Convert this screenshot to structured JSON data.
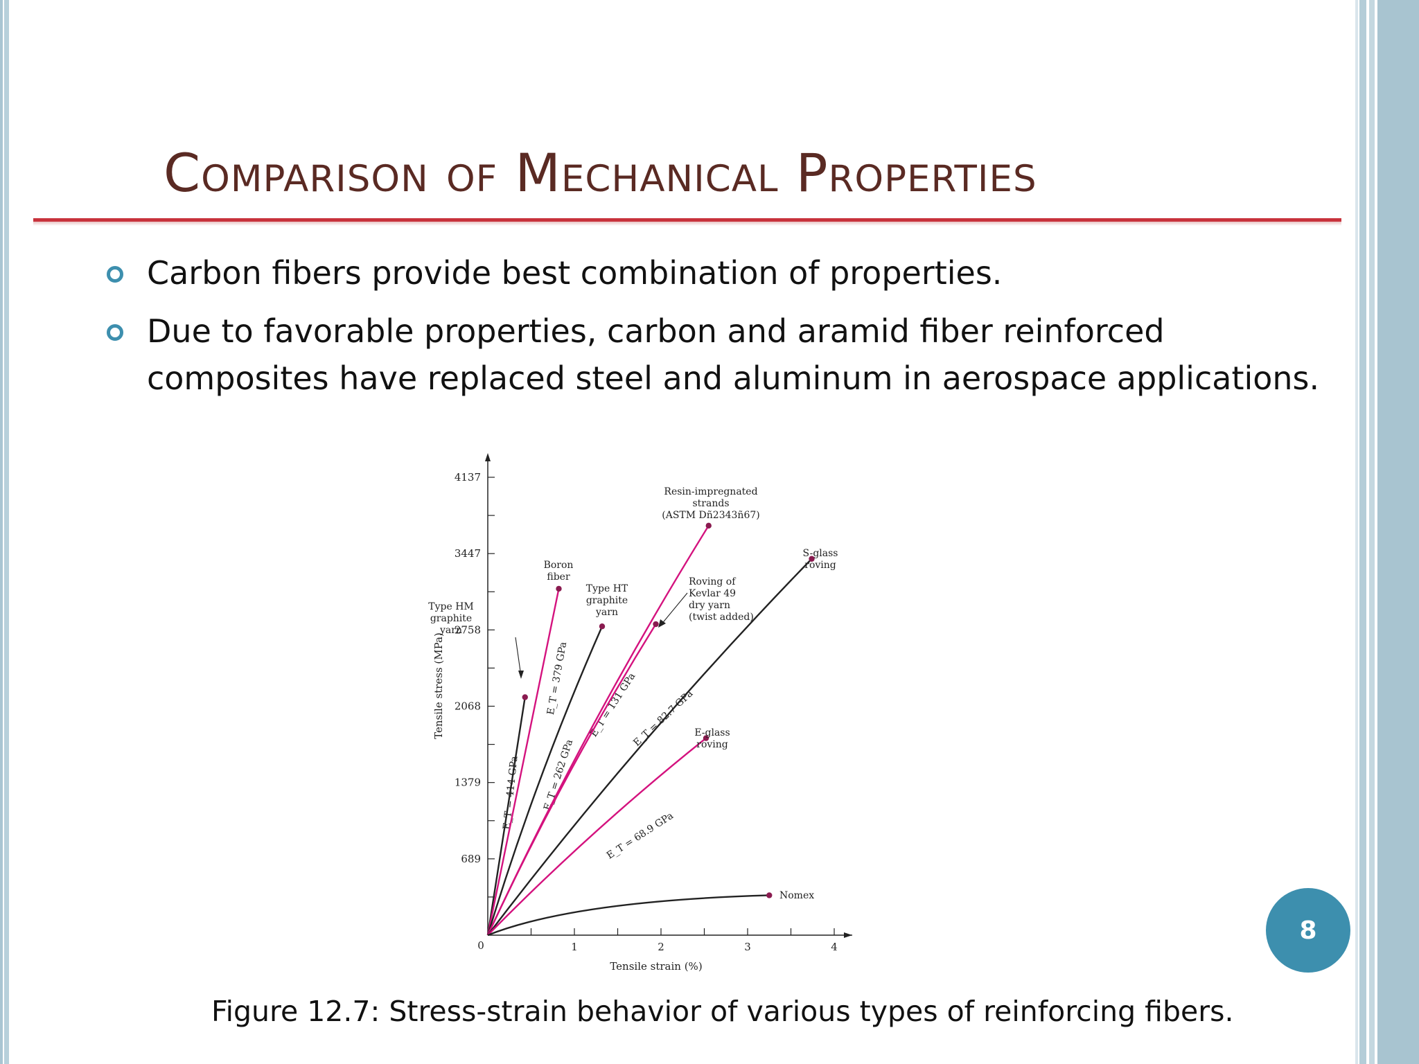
{
  "slide": {
    "title": "Comparison of Mechanical Properties",
    "bullets": [
      "Carbon fibers provide best combination of properties.",
      "Due to favorable properties, carbon and aramid fiber reinforced composites have replaced steel and aluminum in aerospace applications."
    ],
    "figure_caption": "Figure 12.7: Stress-strain behavior of various types of reinforcing fibers.",
    "page_number": "8",
    "colors": {
      "title": "#5a2a23",
      "rule": "#c8323c",
      "accent": "#3d8fae"
    }
  },
  "chart_data": {
    "type": "line",
    "xlabel": "Tensile strain (%)",
    "ylabel": "Tensile stress (MPa)",
    "xlim": [
      0,
      4.3
    ],
    "ylim": [
      0,
      4400
    ],
    "xticks": [
      "0",
      "1",
      "2",
      "3",
      "4"
    ],
    "yticks": [
      "689",
      "1379",
      "2068",
      "2758",
      "3447",
      "4137"
    ],
    "series": [
      {
        "name": "Type HM graphite yarn",
        "label": "Type HM\ngraphite\nyarn",
        "color": "#222222",
        "end": [
          0.43,
          2150
        ],
        "slope_label": "E_T = 414 GPa"
      },
      {
        "name": "Boron fiber",
        "label": "Boron\nfiber",
        "color": "#d4127e",
        "end": [
          0.82,
          3130
        ],
        "slope_label": "E_T = 379 GPa"
      },
      {
        "name": "Type HT graphite yarn",
        "label": "Type HT\ngraphite\nyarn",
        "color": "#222222",
        "end": [
          1.32,
          2790
        ],
        "slope_label": "E_T = 262 GPa"
      },
      {
        "name": "Resin-impregnated strands",
        "label": "Resin-impregnated\nstrands\n(ASTM Dñ2343ñ67)",
        "color": "#d4127e",
        "end": [
          2.55,
          3700
        ],
        "slope_label": "E_T = 131 GPa"
      },
      {
        "name": "Roving of Kevlar 49 dry yarn (twist added)",
        "label": "Roving of\nKevlar 49\ndry yarn\n(twist added)",
        "color": "#d4127e",
        "end": [
          1.94,
          2810
        ],
        "slope_label": ""
      },
      {
        "name": "S-glass roving",
        "label": "S-glass\nroving",
        "color": "#222222",
        "end": [
          3.74,
          3400
        ],
        "slope_label": "E_T = 82.7 GPa"
      },
      {
        "name": "E-glass roving",
        "label": "E-glass\nroving",
        "color": "#d4127e",
        "end": [
          2.52,
          1780
        ],
        "slope_label": "E_T = 68.9 GPa"
      },
      {
        "name": "Nomex",
        "label": "Nomex",
        "color": "#222222",
        "end": [
          3.25,
          360
        ],
        "slope_label": ""
      }
    ]
  }
}
